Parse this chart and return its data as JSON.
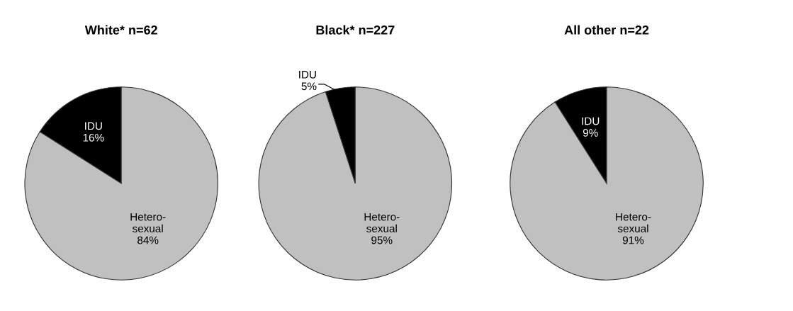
{
  "chart_data": [
    {
      "type": "pie",
      "title": "White* n=62",
      "categories": [
        "IDU",
        "Hetero-\nsexual"
      ],
      "values": [
        16,
        84
      ],
      "colors": [
        "#000000",
        "#c0c0c0"
      ],
      "value_labels": [
        "16%",
        "84%"
      ]
    },
    {
      "type": "pie",
      "title": "Black* n=227",
      "categories": [
        "IDU",
        "Hetero-\nsexual"
      ],
      "values": [
        5,
        95
      ],
      "colors": [
        "#000000",
        "#c0c0c0"
      ],
      "value_labels": [
        "5%",
        "95%"
      ]
    },
    {
      "type": "pie",
      "title": "All other n=22",
      "categories": [
        "IDU",
        "Hetero-\nsexual"
      ],
      "values": [
        9,
        91
      ],
      "colors": [
        "#000000",
        "#c0c0c0"
      ],
      "value_labels": [
        "9%",
        "91%"
      ]
    }
  ]
}
